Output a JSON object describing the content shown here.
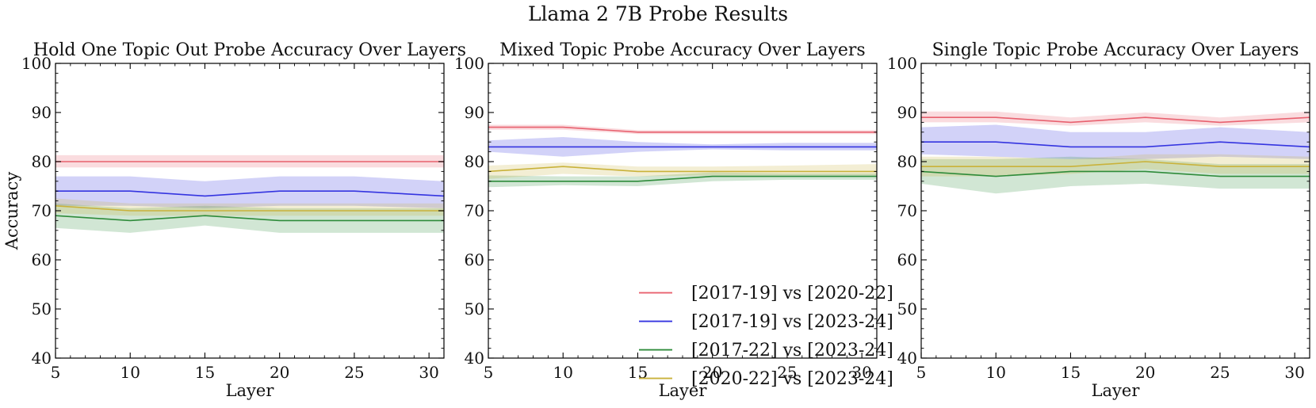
{
  "figure": {
    "title": "Llama 2 7B Probe Results"
  },
  "colors": {
    "s1": "#e8616f",
    "s2": "#3434e0",
    "s3": "#2e8b3a",
    "s4": "#c9b23a"
  },
  "chart_data": [
    {
      "type": "line",
      "title": "Hold One Topic Out Probe Accuracy Over Layers",
      "xlabel": "Layer",
      "ylabel": "Accuracy",
      "xlim": [
        5,
        31
      ],
      "ylim": [
        40,
        100
      ],
      "xticks": [
        5,
        10,
        15,
        20,
        25,
        30
      ],
      "yticks": [
        40,
        50,
        60,
        70,
        80,
        90,
        100
      ],
      "x": [
        5,
        10,
        15,
        20,
        25,
        31
      ],
      "series": [
        {
          "name": "[2017-19] vs [2020-22]",
          "color_key": "s1",
          "values": [
            80,
            80,
            80,
            80,
            80,
            80
          ],
          "lower": [
            78.8,
            78.8,
            78.8,
            78.8,
            78.8,
            78.8
          ],
          "upper": [
            81.3,
            81.3,
            81.3,
            81.3,
            81.3,
            81.3
          ]
        },
        {
          "name": "[2017-19] vs [2023-24]",
          "color_key": "s2",
          "values": [
            74,
            74,
            73,
            74,
            74,
            73
          ],
          "lower": [
            71,
            71,
            70.5,
            71,
            71,
            70.5
          ],
          "upper": [
            77,
            77,
            76,
            77,
            77,
            76
          ]
        },
        {
          "name": "[2017-22] vs [2023-24]",
          "color_key": "s3",
          "values": [
            69,
            68,
            69,
            68,
            68,
            68
          ],
          "lower": [
            66.5,
            65.5,
            67,
            65.5,
            65.5,
            65.5
          ],
          "upper": [
            71.5,
            70.5,
            71,
            70.5,
            70.5,
            70.5
          ]
        },
        {
          "name": "[2020-22] vs [2023-24]",
          "color_key": "s4",
          "values": [
            71,
            70,
            70,
            70,
            70,
            70
          ],
          "lower": [
            69.5,
            69,
            69,
            69,
            69,
            69
          ],
          "upper": [
            72.5,
            71.5,
            71.5,
            71.5,
            71.5,
            71.5
          ]
        }
      ],
      "legend": null
    },
    {
      "type": "line",
      "title": "Mixed Topic Probe Accuracy Over Layers",
      "xlabel": "Layer",
      "ylabel": "",
      "xlim": [
        5,
        31
      ],
      "ylim": [
        40,
        100
      ],
      "xticks": [
        5,
        10,
        15,
        20,
        25,
        30
      ],
      "yticks": [
        40,
        50,
        60,
        70,
        80,
        90,
        100
      ],
      "x": [
        5,
        10,
        15,
        20,
        25,
        31
      ],
      "series": [
        {
          "name": "[2017-19] vs [2020-22]",
          "color_key": "s1",
          "values": [
            87,
            87,
            86,
            86,
            86,
            86
          ],
          "lower": [
            86.5,
            86.5,
            85.6,
            85.6,
            85.6,
            85.6
          ],
          "upper": [
            87.5,
            87.5,
            86.4,
            86.4,
            86.4,
            86.4
          ]
        },
        {
          "name": "[2017-19] vs [2023-24]",
          "color_key": "s2",
          "values": [
            83,
            83,
            83,
            83,
            83,
            83
          ],
          "lower": [
            82,
            81,
            82,
            82.5,
            82.3,
            82.3
          ],
          "upper": [
            84.3,
            85,
            84,
            83.5,
            83.8,
            83.8
          ]
        },
        {
          "name": "[2017-22] vs [2023-24]",
          "color_key": "s3",
          "values": [
            76,
            76,
            76,
            77,
            77,
            77
          ],
          "lower": [
            74.8,
            75.2,
            75,
            76,
            76.3,
            76.3
          ],
          "upper": [
            77.2,
            77,
            77,
            77.8,
            77.6,
            77.6
          ]
        },
        {
          "name": "[2020-22] vs [2023-24]",
          "color_key": "s4",
          "values": [
            78,
            79,
            78,
            78,
            78,
            78
          ],
          "lower": [
            76.5,
            77.5,
            77,
            77.2,
            77.2,
            77.2
          ],
          "upper": [
            79.2,
            79.8,
            79,
            79,
            79.2,
            79.5
          ]
        }
      ],
      "legend": "lower-right"
    },
    {
      "type": "line",
      "title": "Single Topic Probe Accuracy Over Layers",
      "xlabel": "Layer",
      "ylabel": "",
      "xlim": [
        5,
        31
      ],
      "ylim": [
        40,
        100
      ],
      "xticks": [
        5,
        10,
        15,
        20,
        25,
        30
      ],
      "yticks": [
        40,
        50,
        60,
        70,
        80,
        90,
        100
      ],
      "x": [
        5,
        10,
        15,
        20,
        25,
        31
      ],
      "series": [
        {
          "name": "[2017-19] vs [2020-22]",
          "color_key": "s1",
          "values": [
            89,
            89,
            88,
            89,
            88,
            89
          ],
          "lower": [
            88,
            88,
            87.3,
            88,
            87.3,
            88
          ],
          "upper": [
            90.2,
            90.2,
            89,
            90,
            89,
            90.2
          ]
        },
        {
          "name": "[2017-19] vs [2023-24]",
          "color_key": "s2",
          "values": [
            84,
            84,
            83,
            83,
            84,
            83
          ],
          "lower": [
            81.5,
            81,
            80.5,
            80.5,
            81,
            80.5
          ],
          "upper": [
            87,
            87.5,
            86,
            86,
            87,
            86
          ]
        },
        {
          "name": "[2017-22] vs [2023-24]",
          "color_key": "s3",
          "values": [
            78,
            77,
            78,
            78,
            77,
            77
          ],
          "lower": [
            75.5,
            73.5,
            75,
            75.5,
            74.5,
            74.5
          ],
          "upper": [
            80.5,
            80.5,
            81,
            80.5,
            79.5,
            79.5
          ]
        },
        {
          "name": "[2020-22] vs [2023-24]",
          "color_key": "s4",
          "values": [
            79,
            79,
            79,
            80,
            79,
            79
          ],
          "lower": [
            77,
            77,
            77.5,
            78.5,
            77.5,
            77.5
          ],
          "upper": [
            81,
            81,
            80.5,
            81.5,
            81.5,
            81
          ]
        }
      ],
      "legend": null
    }
  ]
}
